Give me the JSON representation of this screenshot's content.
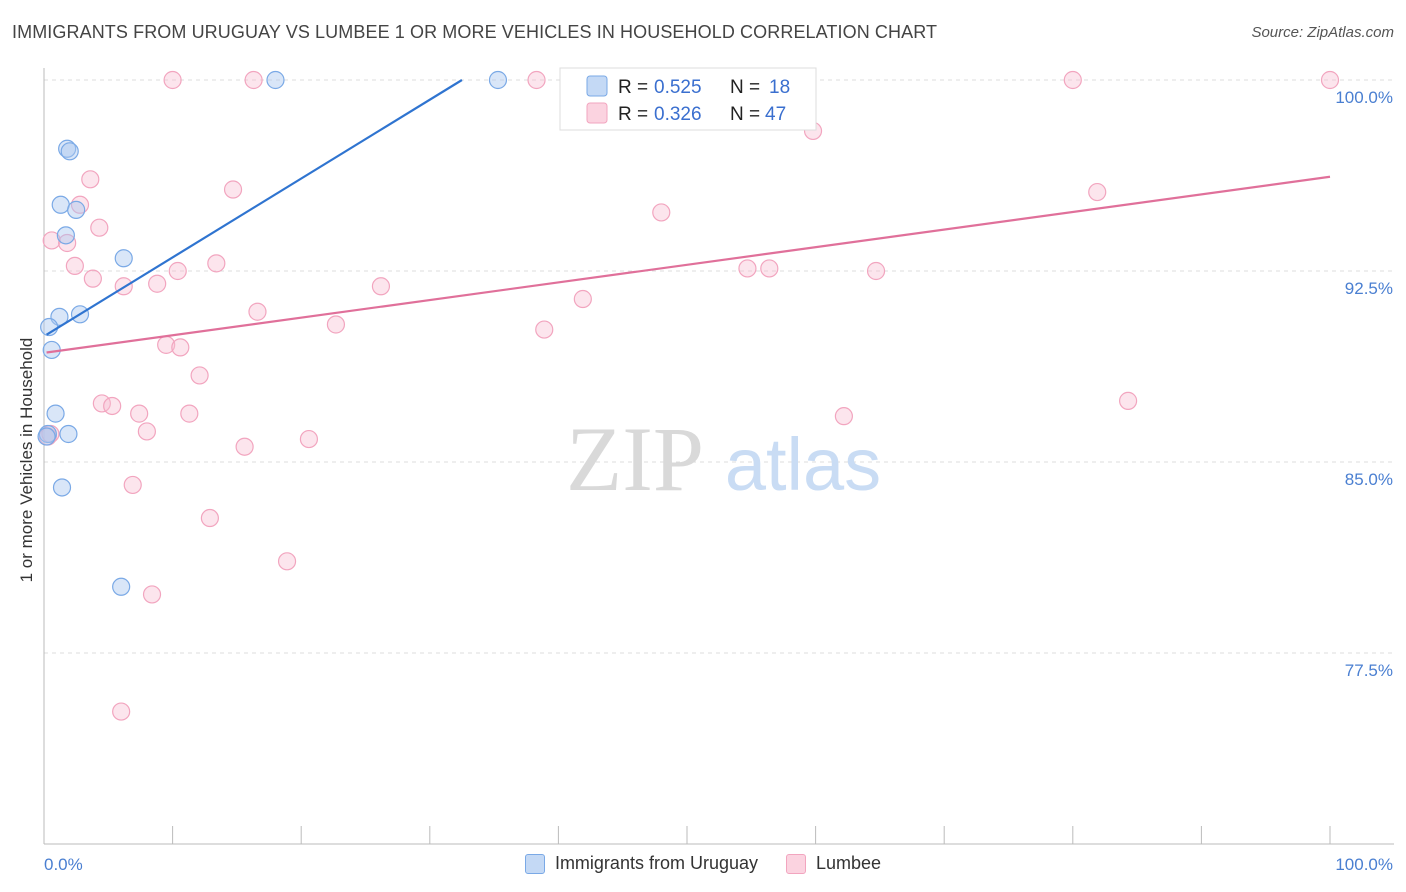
{
  "title": "IMMIGRANTS FROM URUGUAY VS LUMBEE 1 OR MORE VEHICLES IN HOUSEHOLD CORRELATION CHART",
  "source": "Source: ZipAtlas.com",
  "watermark": {
    "zip": "ZIP",
    "atlas": "atlas"
  },
  "colors": {
    "blue": "#7aa9e6",
    "blue_line": "#2f74d0",
    "pink": "#f2a5bf",
    "pink_line": "#e0709a"
  },
  "chart_data": {
    "type": "scatter",
    "xlabel": "",
    "ylabel": "1 or more Vehicles in Household",
    "xlim": [
      0,
      100
    ],
    "ylim": [
      71.0,
      100.8
    ],
    "x_tick_labels": [
      "0.0%",
      "100.0%"
    ],
    "y_ticks": [
      {
        "value": 100.0,
        "label": "100.0%"
      },
      {
        "value": 92.5,
        "label": "92.5%"
      },
      {
        "value": 85.0,
        "label": "85.0%"
      },
      {
        "value": 77.5,
        "label": "77.5%"
      }
    ],
    "legend": {
      "r_label": "R =",
      "n_label": "N =",
      "entries": [
        {
          "series": "Immigrants from Uruguay",
          "r": "0.525",
          "n": "18"
        },
        {
          "series": "Lumbee",
          "r": "0.326",
          "n": "47"
        }
      ]
    },
    "series": [
      {
        "name": "Immigrants from Uruguay",
        "trend": {
          "x0": 0.2,
          "y0": 90.0,
          "x1": 32.5,
          "y1": 100.0
        },
        "points": [
          [
            18.0,
            100.0
          ],
          [
            35.3,
            100.0
          ],
          [
            1.8,
            97.3
          ],
          [
            2.0,
            97.2
          ],
          [
            1.3,
            95.1
          ],
          [
            2.5,
            94.9
          ],
          [
            1.7,
            93.9
          ],
          [
            6.2,
            93.0
          ],
          [
            1.2,
            90.7
          ],
          [
            2.8,
            90.8
          ],
          [
            0.4,
            90.3
          ],
          [
            0.6,
            89.4
          ],
          [
            0.9,
            86.9
          ],
          [
            1.9,
            86.1
          ],
          [
            1.4,
            84.0
          ],
          [
            6.0,
            80.1
          ],
          [
            0.3,
            86.1
          ],
          [
            0.2,
            86.0
          ]
        ]
      },
      {
        "name": "Lumbee",
        "trend": {
          "x0": 0.2,
          "y0": 89.3,
          "x1": 100.0,
          "y1": 96.2
        },
        "points": [
          [
            10.0,
            100.0
          ],
          [
            16.3,
            100.0
          ],
          [
            38.3,
            100.0
          ],
          [
            80.0,
            100.0
          ],
          [
            100.0,
            100.0
          ],
          [
            59.8,
            98.0
          ],
          [
            3.6,
            96.1
          ],
          [
            14.7,
            95.7
          ],
          [
            81.9,
            95.6
          ],
          [
            2.8,
            95.1
          ],
          [
            48.0,
            94.8
          ],
          [
            4.3,
            94.2
          ],
          [
            0.6,
            93.7
          ],
          [
            1.8,
            93.6
          ],
          [
            2.4,
            92.7
          ],
          [
            13.4,
            92.8
          ],
          [
            10.4,
            92.5
          ],
          [
            54.7,
            92.6
          ],
          [
            56.4,
            92.6
          ],
          [
            64.7,
            92.5
          ],
          [
            3.8,
            92.2
          ],
          [
            6.2,
            91.9
          ],
          [
            8.8,
            92.0
          ],
          [
            26.2,
            91.9
          ],
          [
            41.9,
            91.4
          ],
          [
            16.6,
            90.9
          ],
          [
            22.7,
            90.4
          ],
          [
            38.9,
            90.2
          ],
          [
            9.5,
            89.6
          ],
          [
            10.6,
            89.5
          ],
          [
            12.1,
            88.4
          ],
          [
            4.5,
            87.3
          ],
          [
            5.3,
            87.2
          ],
          [
            7.4,
            86.9
          ],
          [
            11.3,
            86.9
          ],
          [
            84.3,
            87.4
          ],
          [
            62.2,
            86.8
          ],
          [
            8.0,
            86.2
          ],
          [
            20.6,
            85.9
          ],
          [
            15.6,
            85.6
          ],
          [
            6.9,
            84.1
          ],
          [
            12.9,
            82.8
          ],
          [
            18.9,
            81.1
          ],
          [
            8.4,
            79.8
          ],
          [
            6.0,
            75.2
          ],
          [
            0.3,
            86.0
          ],
          [
            0.5,
            86.1
          ]
        ]
      }
    ]
  }
}
